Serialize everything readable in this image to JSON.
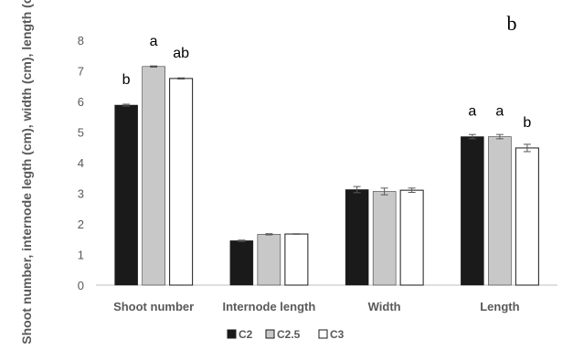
{
  "panel_label": "b",
  "chart_data": {
    "type": "bar",
    "categories": [
      "Shoot number",
      "Internode length",
      "Width",
      "Length"
    ],
    "ylabel": "Shoot number, internode legth (cm), width (cm), length (cm)",
    "xlabel": "",
    "ylim": [
      0,
      8
    ],
    "yticks": [
      0,
      1,
      2,
      3,
      4,
      5,
      6,
      7,
      8
    ],
    "grid": false,
    "legend_position": "bottom",
    "series": [
      {
        "name": "C2",
        "color": "#1a1a1a",
        "values": [
          5.88,
          1.45,
          3.12,
          4.85
        ],
        "errors": [
          0.03,
          0.02,
          0.1,
          0.07
        ],
        "labels": [
          "b",
          "",
          "",
          "a"
        ]
      },
      {
        "name": "C2.5",
        "color": "#c8c8c8",
        "values": [
          7.14,
          1.66,
          3.06,
          4.85
        ],
        "errors": [
          0.02,
          0.02,
          0.11,
          0.07
        ],
        "labels": [
          "a",
          "",
          "",
          "a"
        ]
      },
      {
        "name": "C3",
        "color": "#ffffff",
        "values": [
          6.75,
          1.67,
          3.1,
          4.48
        ],
        "errors": [
          0.02,
          0.01,
          0.07,
          0.12
        ],
        "labels": [
          "ab",
          "",
          "",
          "b"
        ]
      }
    ]
  }
}
